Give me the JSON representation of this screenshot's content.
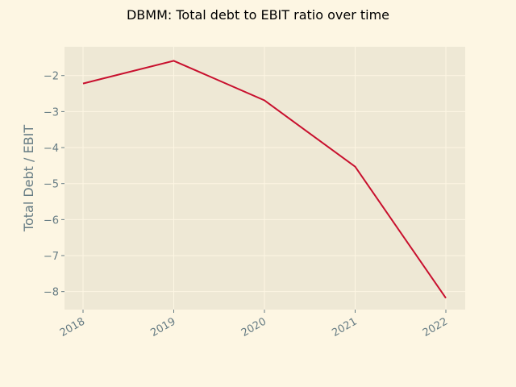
{
  "chart_data": {
    "type": "line",
    "title": "DBMM: Total debt to EBIT ratio over time",
    "xlabel": "",
    "ylabel": "Total Debt / EBIT",
    "categories": [
      "2018",
      "2019",
      "2020",
      "2021",
      "2022"
    ],
    "series": [
      {
        "values": [
          -2.22,
          -1.59,
          -2.69,
          -4.53,
          -8.18
        ]
      }
    ],
    "yticks": [
      "−8",
      "−7",
      "−6",
      "−5",
      "−4",
      "−3",
      "−2"
    ],
    "ytick_values": [
      -8,
      -7,
      -6,
      -5,
      -4,
      -3,
      -2
    ],
    "ylim": [
      -8.5,
      -1.2
    ],
    "grid": true,
    "colors": {
      "line": "#c8102e",
      "plot_background": "#eee8d5",
      "figure_background": "#fdf6e3",
      "grid": "#fdf6e3",
      "tick_text": "#657b83"
    }
  }
}
